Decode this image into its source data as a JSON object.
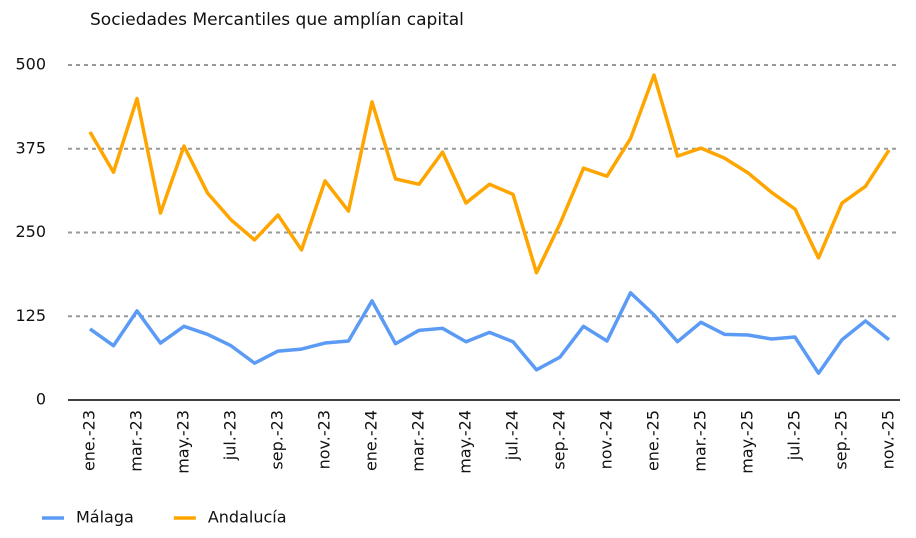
{
  "chart_data": {
    "type": "line",
    "title": "Sociedades Mercantiles que amplían capital",
    "categories": [
      "ene.-23",
      null,
      "mar.-23",
      null,
      "may.-23",
      null,
      "jul.-23",
      null,
      "sep.-23",
      null,
      "nov.-23",
      null,
      "ene.-24",
      null,
      "mar.-24",
      null,
      "may.-24",
      null,
      "jul.-24",
      null,
      "sep.-24",
      null,
      "nov.-24",
      null,
      "ene.-25",
      null,
      "mar.-25",
      null,
      "may.-25",
      null,
      "jul.-25",
      null,
      "sep.-25",
      null,
      "nov.-25"
    ],
    "series": [
      {
        "name": "Málaga",
        "color": "#5b9bf5",
        "values": [
          106,
          81,
          133,
          85,
          110,
          98,
          81,
          55,
          73,
          76,
          85,
          88,
          148,
          84,
          104,
          107,
          87,
          101,
          87,
          45,
          64,
          110,
          88,
          160,
          127,
          87,
          116,
          98,
          97,
          91,
          94,
          40,
          90,
          118,
          90
        ]
      },
      {
        "name": "Andalucía",
        "color": "#ffa500",
        "values": [
          400,
          340,
          450,
          279,
          379,
          309,
          269,
          239,
          276,
          224,
          327,
          282,
          445,
          330,
          322,
          370,
          294,
          322,
          307,
          190,
          263,
          346,
          334,
          390,
          485,
          364,
          376,
          361,
          339,
          310,
          285,
          212,
          294,
          319,
          373
        ]
      }
    ],
    "ylim": [
      0,
      500
    ],
    "yticks": [
      0,
      125,
      250,
      375,
      500
    ],
    "grid": true,
    "legend": "bottom-left"
  }
}
